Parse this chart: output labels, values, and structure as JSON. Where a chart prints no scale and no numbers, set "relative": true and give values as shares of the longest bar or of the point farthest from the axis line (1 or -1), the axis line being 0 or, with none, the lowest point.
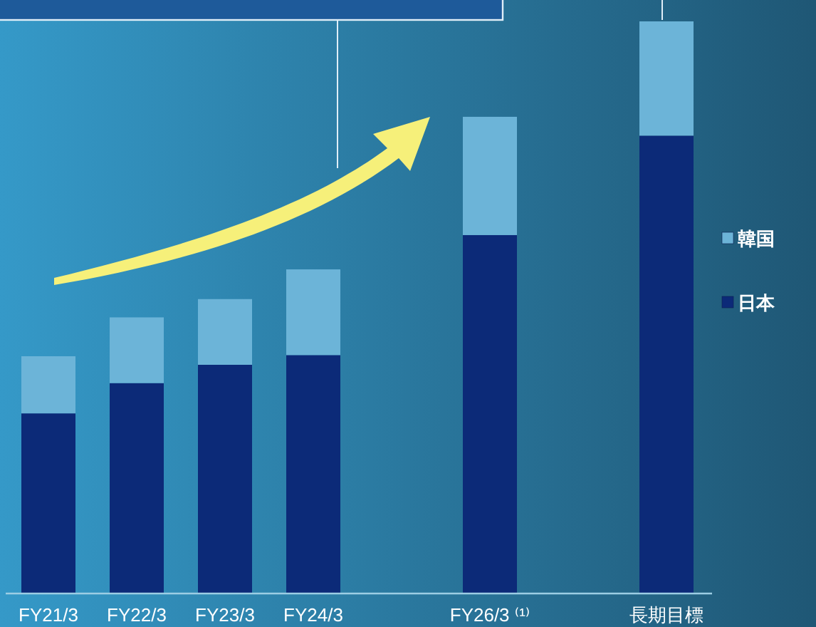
{
  "chart_data": {
    "type": "bar",
    "stacked": true,
    "relative": true,
    "legend": "right",
    "categories": [
      "FY21/3",
      "FY22/3",
      "FY23/3",
      "FY24/3",
      null,
      "FY26/3 ⁽¹⁾",
      null,
      "長期目標"
    ],
    "series": [
      {
        "name": "日本",
        "color": "#0c2a78",
        "values": [
          0.314,
          0.367,
          0.399,
          0.416,
          null,
          0.626,
          null,
          0.8
        ]
      },
      {
        "name": "韓国",
        "color": "#6cb4d8",
        "values": [
          0.1,
          0.115,
          0.115,
          0.15,
          null,
          0.207,
          null,
          0.2
        ]
      }
    ]
  }
}
